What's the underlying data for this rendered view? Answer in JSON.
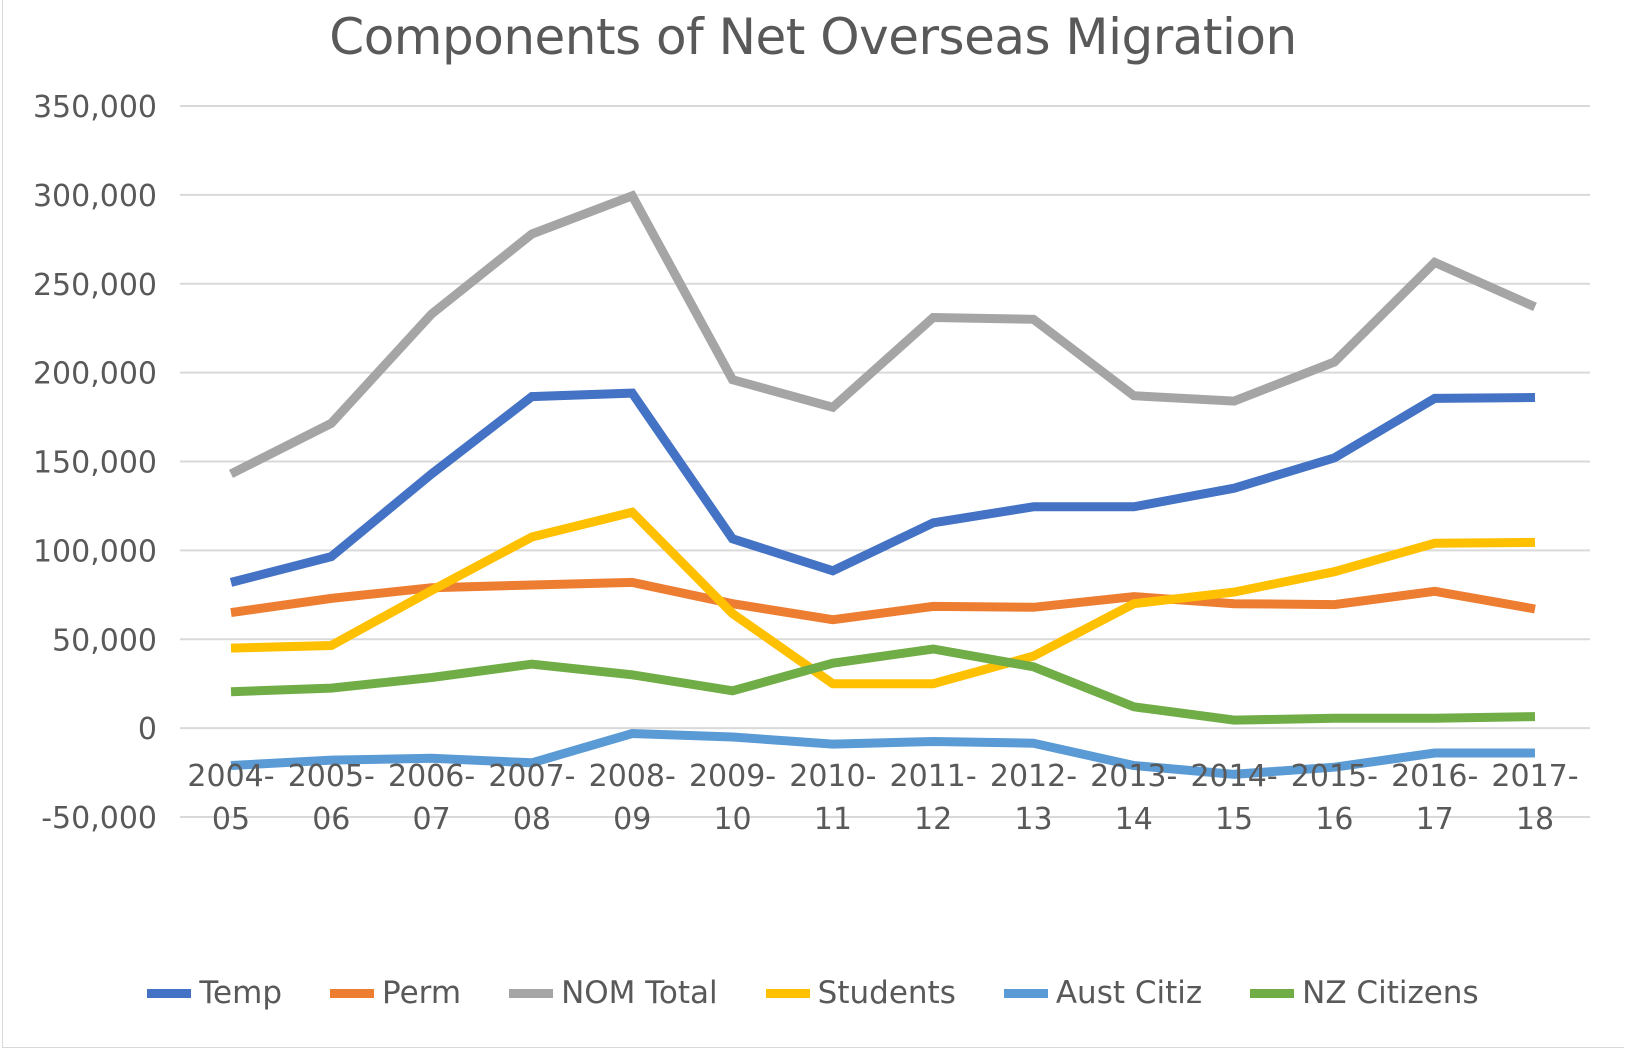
{
  "chart_data": {
    "type": "line",
    "title": "Components of Net Overseas Migration",
    "xlabel": "",
    "ylabel": "",
    "ylim": [
      -50000,
      350000
    ],
    "yticks": [
      -50000,
      0,
      50000,
      100000,
      150000,
      200000,
      250000,
      300000,
      350000
    ],
    "ytick_labels": [
      "-50,000",
      "0",
      "50,000",
      "100,000",
      "150,000",
      "200,000",
      "250,000",
      "300,000",
      "350,000"
    ],
    "grid": true,
    "legend_position": "bottom",
    "categories": [
      [
        "2004-",
        "05"
      ],
      [
        "2005-",
        "06"
      ],
      [
        "2006-",
        "07"
      ],
      [
        "2007-",
        "08"
      ],
      [
        "2008-",
        "09"
      ],
      [
        "2009-",
        "10"
      ],
      [
        "2010-",
        "11"
      ],
      [
        "2011-",
        "12"
      ],
      [
        "2012-",
        "13"
      ],
      [
        "2013-",
        "14"
      ],
      [
        "2014-",
        "15"
      ],
      [
        "2015-",
        "16"
      ],
      [
        "2016-",
        "17"
      ],
      [
        "2017-",
        "18"
      ]
    ],
    "series": [
      {
        "name": "Temp",
        "color": "#4472C4",
        "values": [
          82000,
          96500,
          143000,
          186500,
          188500,
          106500,
          88500,
          115500,
          124500,
          124500,
          135000,
          152000,
          185500,
          186000
        ]
      },
      {
        "name": "Perm",
        "color": "#ED7D31",
        "values": [
          65000,
          73000,
          79000,
          80500,
          82000,
          70000,
          61000,
          68500,
          68000,
          74000,
          70000,
          69500,
          77000,
          67000
        ]
      },
      {
        "name": "NOM Total",
        "color": "#A5A5A5",
        "values": [
          143000,
          171500,
          233000,
          278000,
          299500,
          196000,
          180500,
          231000,
          230000,
          187000,
          184000,
          206000,
          262000,
          237000
        ]
      },
      {
        "name": "Students",
        "color": "#FFC000",
        "values": [
          45000,
          46500,
          77500,
          107500,
          121500,
          64500,
          25000,
          25000,
          40500,
          70000,
          76500,
          88000,
          104000,
          104500
        ]
      },
      {
        "name": "Aust Citiz",
        "color": "#5B9BD5",
        "values": [
          -21000,
          -18000,
          -17000,
          -19500,
          -3000,
          -5000,
          -9000,
          -7500,
          -8500,
          -21000,
          -26000,
          -22000,
          -14000,
          -14000
        ]
      },
      {
        "name": "NZ Citizens",
        "color": "#70AD47",
        "values": [
          20500,
          22500,
          28500,
          36000,
          30000,
          21000,
          36500,
          44500,
          34500,
          12000,
          4500,
          5500,
          5500,
          6500
        ]
      }
    ]
  }
}
